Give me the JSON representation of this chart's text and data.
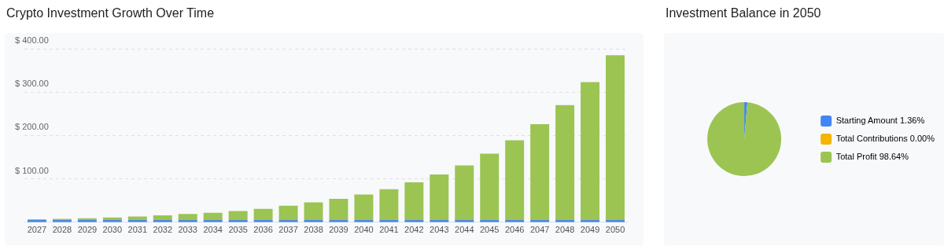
{
  "chart_data": [
    {
      "type": "bar",
      "title": "Crypto Investment Growth Over Time",
      "categories": [
        "2027",
        "2028",
        "2029",
        "2030",
        "2031",
        "2032",
        "2033",
        "2034",
        "2035",
        "2036",
        "2037",
        "2038",
        "2039",
        "2040",
        "2041",
        "2042",
        "2043",
        "2044",
        "2045",
        "2046",
        "2047",
        "2048",
        "2049",
        "2050"
      ],
      "series": [
        {
          "color": "#4a86e8",
          "values": [
            5,
            5,
            5,
            5,
            5,
            5,
            5,
            5,
            5,
            5,
            5,
            5,
            5,
            5,
            5,
            5,
            5,
            5,
            5,
            5,
            5,
            5,
            5,
            5
          ]
        },
        {
          "color": "#9bc453",
          "values": [
            2,
            3,
            4,
            6,
            8,
            11,
            14,
            17,
            21,
            26,
            33,
            41,
            49,
            59,
            71,
            87,
            105,
            126,
            153,
            184,
            221,
            265,
            318,
            380
          ]
        }
      ],
      "stacked": true,
      "ylim": [
        0,
        400
      ],
      "yticks": [
        {
          "value": 100,
          "label": "$ 100.00"
        },
        {
          "value": 200,
          "label": "$ 200.00"
        },
        {
          "value": 300,
          "label": "$ 300.00"
        },
        {
          "value": 400,
          "label": "$ 400.00"
        }
      ],
      "grid": "y"
    },
    {
      "type": "pie",
      "title": "Investment Balance in 2050",
      "categories": [
        "Starting Amount",
        "Total Contributions",
        "Total Profit"
      ],
      "values": [
        1.36,
        0,
        98.64
      ],
      "value_labels": [
        "1.36%",
        "0.00%",
        "98.64%"
      ],
      "colors": [
        "#4285f4",
        "#f4b400",
        "#9bc453"
      ],
      "legend": "right"
    }
  ]
}
